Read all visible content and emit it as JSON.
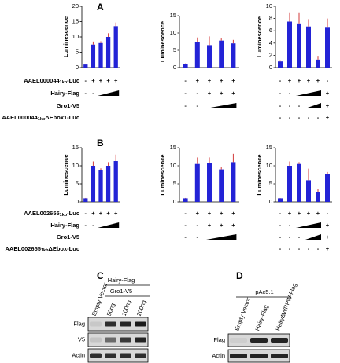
{
  "panel_labels": [
    "A",
    "B",
    "C",
    "D"
  ],
  "chart_data": [
    {
      "type": "bar",
      "ylabel": "Luminescence",
      "ylim": [
        0,
        20
      ],
      "yticks": [
        0,
        5,
        10,
        15,
        20
      ],
      "categories": [
        null,
        null,
        null,
        null,
        null
      ],
      "values": [
        1,
        7.5,
        8,
        10,
        13.5
      ],
      "errors": [
        0.2,
        1,
        0.6,
        1.2,
        1.2
      ],
      "color": "#2323d6",
      "error_color": "#d23a3a"
    },
    {
      "type": "bar",
      "ylabel": "Luminescence",
      "ylim": [
        0,
        15
      ],
      "yticks": [
        0,
        5,
        10,
        15
      ],
      "categories": [
        null,
        null,
        null,
        null,
        null
      ],
      "values": [
        1,
        7.5,
        6.5,
        7.8,
        7
      ],
      "errors": [
        0.2,
        1.2,
        2.5,
        0.6,
        1
      ],
      "color": "#2323d6",
      "error_color": "#d23a3a"
    },
    {
      "type": "bar",
      "ylabel": "Luminescence",
      "ylim": [
        0,
        10
      ],
      "yticks": [
        0,
        2,
        4,
        6,
        8,
        10
      ],
      "categories": [
        null,
        null,
        null,
        null,
        null,
        null
      ],
      "values": [
        1,
        7.5,
        7.2,
        6.7,
        1.3,
        6.5
      ],
      "errors": [
        0.2,
        1.5,
        1.8,
        1.2,
        0.6,
        1.5
      ],
      "color": "#2323d6",
      "error_color": "#d23a3a"
    },
    {
      "type": "bar",
      "ylabel": "Luminescence",
      "ylim": [
        0,
        15
      ],
      "yticks": [
        0,
        5,
        10,
        15
      ],
      "categories": [
        null,
        null,
        null,
        null,
        null
      ],
      "values": [
        1,
        10,
        8.7,
        10,
        11.3
      ],
      "errors": [
        0.1,
        1.2,
        0.6,
        1,
        1.8
      ],
      "color": "#2323d6",
      "error_color": "#d23a3a"
    },
    {
      "type": "bar",
      "ylabel": "Luminescence",
      "ylim": [
        0,
        15
      ],
      "yticks": [
        0,
        5,
        10,
        15
      ],
      "categories": [
        null,
        null,
        null,
        null,
        null
      ],
      "values": [
        1,
        10.5,
        10.8,
        9,
        11
      ],
      "errors": [
        0.1,
        1.8,
        1.5,
        0.6,
        2.3
      ],
      "color": "#2323d6",
      "error_color": "#d23a3a"
    },
    {
      "type": "bar",
      "ylabel": "Luminescence",
      "ylim": [
        0,
        15
      ],
      "yticks": [
        0,
        5,
        10,
        15
      ],
      "categories": [
        null,
        null,
        null,
        null,
        null,
        null
      ],
      "values": [
        1,
        10,
        10.5,
        6,
        2.7,
        7.8
      ],
      "errors": [
        0.1,
        1.2,
        0.5,
        3.2,
        1,
        0.5
      ],
      "color": "#2323d6",
      "error_color": "#d23a3a"
    }
  ],
  "conditions": [
    {
      "rows": [
        {
          "label": [
            "AAEL000044",
            "1kb",
            "-Luc"
          ],
          "signs": [
            [
              "-",
              "+",
              "+",
              "+",
              "+"
            ],
            [
              "-",
              "+",
              "+",
              "+",
              "+"
            ],
            [
              "-",
              "+",
              "+",
              "+",
              "+",
              "-"
            ]
          ]
        },
        {
          "label": [
            "Hairy-Flag"
          ],
          "signs": [
            [
              "-",
              "-",
              null,
              null,
              null
            ],
            [
              "-",
              "-",
              "+",
              "+",
              "+"
            ],
            [
              "-",
              "-",
              null,
              null,
              null,
              "+"
            ]
          ]
        },
        {
          "label": [
            "Gro1-V5"
          ],
          "signs": [
            [],
            [
              "-",
              "-",
              null,
              null,
              null
            ],
            [
              "-",
              "-",
              "-",
              null,
              null,
              "+"
            ]
          ]
        },
        {
          "label": [
            "AAEL000044",
            "1kb",
            "ΔEbox1-Luc"
          ],
          "signs": [
            [],
            [],
            [
              "-",
              "-",
              "-",
              "-",
              "-",
              "+"
            ]
          ]
        }
      ]
    },
    {
      "rows": [
        {
          "label": [
            "AAEL002655",
            "1kb",
            "-Luc"
          ],
          "signs": [
            [
              "-",
              "+",
              "+",
              "+",
              "+"
            ],
            [
              "-",
              "+",
              "+",
              "+",
              "+"
            ],
            [
              "-",
              "+",
              "+",
              "+",
              "+",
              "-"
            ]
          ]
        },
        {
          "label": [
            "Hairy-Flag"
          ],
          "signs": [
            [
              "-",
              "-",
              null,
              null,
              null
            ],
            [
              "-",
              "-",
              "+",
              "+",
              "+"
            ],
            [
              "-",
              "-",
              null,
              null,
              null,
              "+"
            ]
          ]
        },
        {
          "label": [
            "Gro1-V5"
          ],
          "signs": [
            [],
            [
              "-",
              "-",
              null,
              null,
              null
            ],
            [
              "-",
              "-",
              "-",
              null,
              null,
              "+"
            ]
          ]
        },
        {
          "label": [
            "AAEL002655",
            "1kb",
            "ΔEbox-Luc"
          ],
          "signs": [
            [],
            [],
            [
              "-",
              "-",
              "-",
              "-",
              "-",
              "+"
            ]
          ]
        }
      ]
    }
  ],
  "blots": [
    {
      "header": [
        "Hairy-Flag",
        "Gro1-V5"
      ],
      "lanes": [
        "Empty Vector",
        "50ng",
        "100ng",
        "200ng"
      ],
      "rows": [
        "Flag",
        "V5",
        "Actin"
      ]
    },
    {
      "header": [
        "pAc5.1"
      ],
      "lanes": [
        "Empty Vector",
        "Hairy-Flag",
        "HairyΔWRPW-Flag"
      ],
      "rows": [
        "Flag",
        "Actin"
      ]
    }
  ]
}
